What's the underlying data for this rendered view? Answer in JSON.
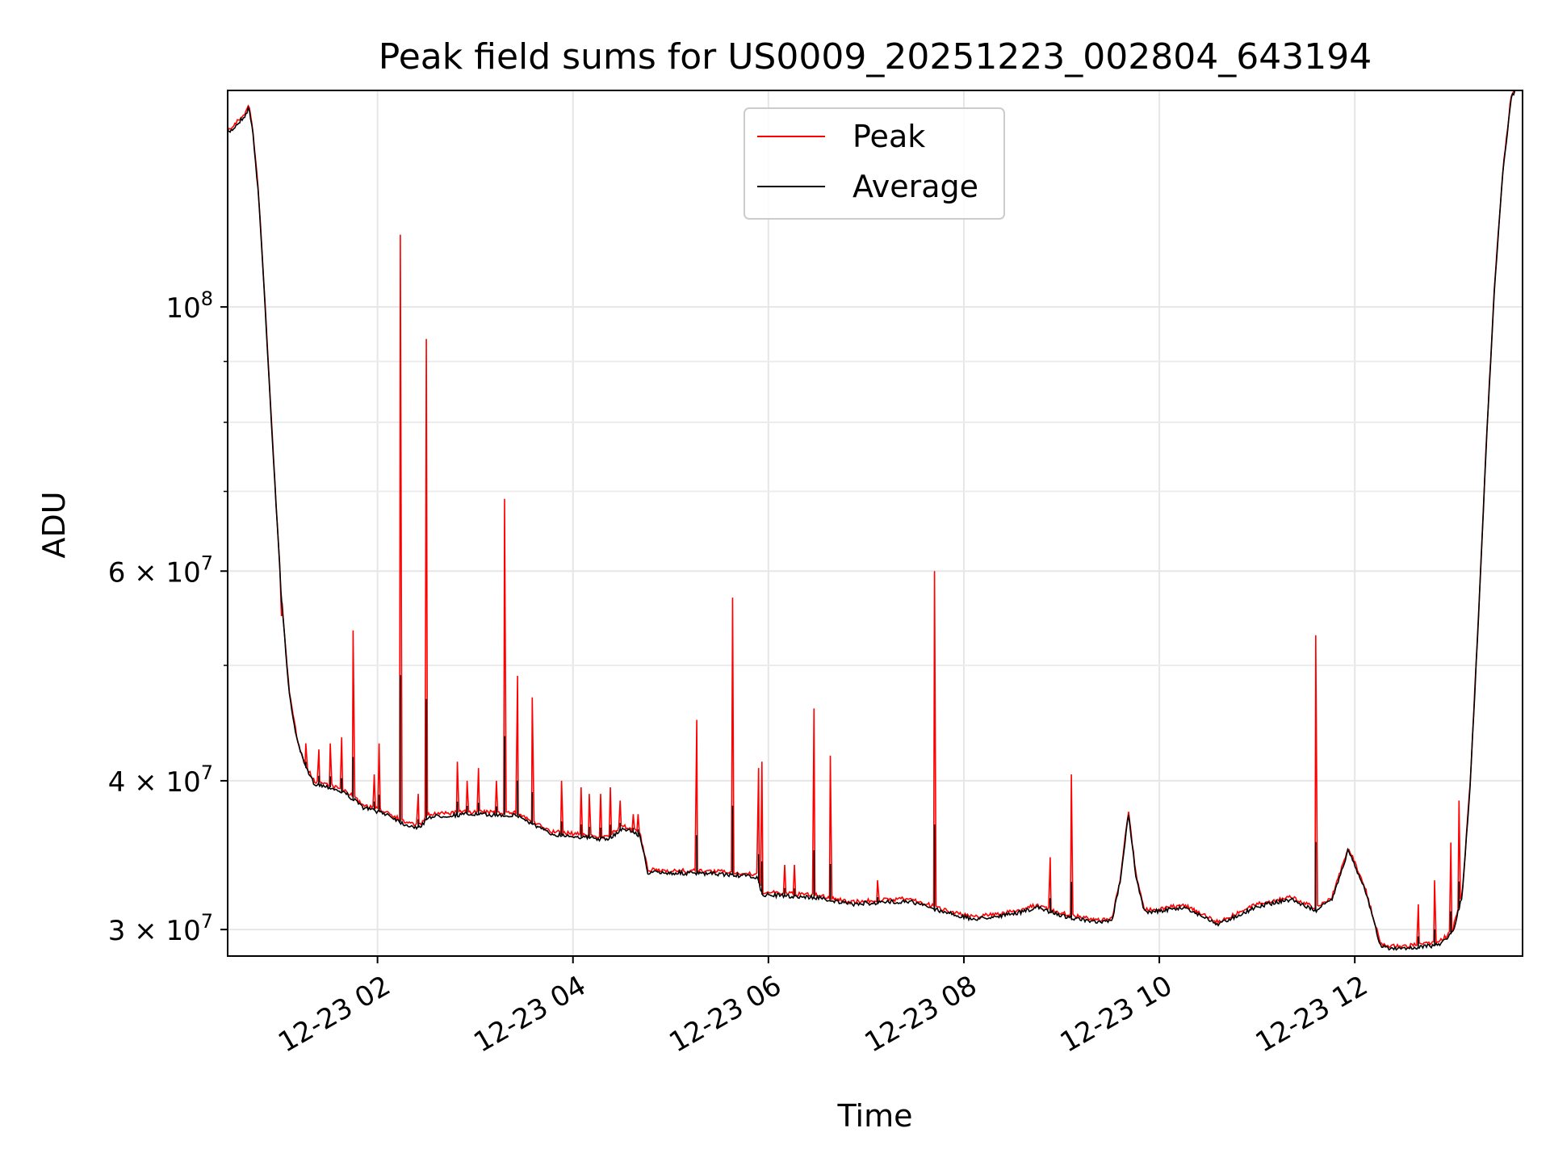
{
  "chart_data": {
    "type": "line",
    "title": "Peak field sums for US0009_20251223_002804_643194",
    "xlabel": "Time",
    "ylabel": "ADU",
    "y_scale": "log",
    "ylim": [
      28500000,
      152000000
    ],
    "xlim": [
      "2025-12-23 00:28",
      "2025-12-23 13:43"
    ],
    "grid": true,
    "legend_position": "upper center",
    "x_ticks": [
      {
        "value": "2025-12-23 02:00",
        "label": "12-23 02"
      },
      {
        "value": "2025-12-23 04:00",
        "label": "12-23 04"
      },
      {
        "value": "2025-12-23 06:00",
        "label": "12-23 06"
      },
      {
        "value": "2025-12-23 08:00",
        "label": "12-23 08"
      },
      {
        "value": "2025-12-23 10:00",
        "label": "12-23 10"
      },
      {
        "value": "2025-12-23 12:00",
        "label": "12-23 12"
      }
    ],
    "y_major_ticks": [
      {
        "value": 30000000,
        "base": "3 × 10",
        "exp": "7"
      },
      {
        "value": 40000000,
        "base": "4 × 10",
        "exp": "7"
      },
      {
        "value": 60000000,
        "base": "6 × 10",
        "exp": "7"
      },
      {
        "value": 100000000,
        "base": "10",
        "exp": "8"
      }
    ],
    "y_minor_ticks": [
      50000000,
      70000000,
      80000000,
      90000000
    ],
    "series": [
      {
        "name": "Peak",
        "color": "#ff0000",
        "note_points": "average baseline plus spikes",
        "spikes": [
          [
            "2025-12-23 01:01",
            55000000
          ],
          [
            "2025-12-23 01:04",
            51000000
          ],
          [
            "2025-12-23 01:16",
            43000000
          ],
          [
            "2025-12-23 01:24",
            42500000
          ],
          [
            "2025-12-23 01:31",
            43000000
          ],
          [
            "2025-12-23 01:38",
            43500000
          ],
          [
            "2025-12-23 01:45",
            53500000
          ],
          [
            "2025-12-23 01:58",
            40500000
          ],
          [
            "2025-12-23 02:01",
            43000000
          ],
          [
            "2025-12-23 02:14",
            115000000
          ],
          [
            "2025-12-23 02:25",
            39000000
          ],
          [
            "2025-12-23 02:30",
            94000000
          ],
          [
            "2025-12-23 02:49",
            41500000
          ],
          [
            "2025-12-23 02:55",
            40000000
          ],
          [
            "2025-12-23 03:02",
            41000000
          ],
          [
            "2025-12-23 03:13",
            40000000
          ],
          [
            "2025-12-23 03:18",
            69000000
          ],
          [
            "2025-12-23 03:26",
            49000000
          ],
          [
            "2025-12-23 03:35",
            47000000
          ],
          [
            "2025-12-23 03:53",
            40000000
          ],
          [
            "2025-12-23 04:05",
            39500000
          ],
          [
            "2025-12-23 04:10",
            39000000
          ],
          [
            "2025-12-23 04:17",
            39000000
          ],
          [
            "2025-12-23 04:23",
            39500000
          ],
          [
            "2025-12-23 04:29",
            38500000
          ],
          [
            "2025-12-23 04:37",
            37500000
          ],
          [
            "2025-12-23 04:40",
            37500000
          ],
          [
            "2025-12-23 05:16",
            45000000
          ],
          [
            "2025-12-23 05:38",
            57000000
          ],
          [
            "2025-12-23 05:54",
            41000000
          ],
          [
            "2025-12-23 05:56",
            41500000
          ],
          [
            "2025-12-23 06:10",
            34000000
          ],
          [
            "2025-12-23 06:16",
            34000000
          ],
          [
            "2025-12-23 06:28",
            46000000
          ],
          [
            "2025-12-23 06:38",
            42000000
          ],
          [
            "2025-12-23 07:07",
            33000000
          ],
          [
            "2025-12-23 07:42",
            60000000
          ],
          [
            "2025-12-23 08:53",
            34500000
          ],
          [
            "2025-12-23 09:06",
            40500000
          ],
          [
            "2025-12-23 11:36",
            53000000
          ],
          [
            "2025-12-23 12:39",
            31500000
          ],
          [
            "2025-12-23 12:49",
            33000000
          ],
          [
            "2025-12-23 12:59",
            35500000
          ],
          [
            "2025-12-23 13:04",
            38500000
          ]
        ]
      },
      {
        "name": "Average",
        "color": "#000000",
        "points": [
          [
            "2025-12-23 00:28",
            140000000
          ],
          [
            "2025-12-23 00:31",
            141000000
          ],
          [
            "2025-12-23 00:35",
            143000000
          ],
          [
            "2025-12-23 00:39",
            145000000
          ],
          [
            "2025-12-23 00:41",
            147000000
          ],
          [
            "2025-12-23 00:43",
            142000000
          ],
          [
            "2025-12-23 00:47",
            124000000
          ],
          [
            "2025-12-23 00:51",
            100000000
          ],
          [
            "2025-12-23 00:56",
            75000000
          ],
          [
            "2025-12-23 01:01",
            57000000
          ],
          [
            "2025-12-23 01:06",
            47000000
          ],
          [
            "2025-12-23 01:11",
            43000000
          ],
          [
            "2025-12-23 01:16",
            41000000
          ],
          [
            "2025-12-23 01:21",
            39800000
          ],
          [
            "2025-12-23 01:31",
            39500000
          ],
          [
            "2025-12-23 01:41",
            39000000
          ],
          [
            "2025-12-23 01:51",
            38000000
          ],
          [
            "2025-12-23 02:06",
            37500000
          ],
          [
            "2025-12-23 02:16",
            36800000
          ],
          [
            "2025-12-23 02:26",
            36500000
          ],
          [
            "2025-12-23 02:31",
            37300000
          ],
          [
            "2025-12-23 02:56",
            37500000
          ],
          [
            "2025-12-23 03:26",
            37400000
          ],
          [
            "2025-12-23 03:46",
            36100000
          ],
          [
            "2025-12-23 04:21",
            35700000
          ],
          [
            "2025-12-23 04:31",
            36500000
          ],
          [
            "2025-12-23 04:41",
            36000000
          ],
          [
            "2025-12-23 04:46",
            33500000
          ],
          [
            "2025-12-23 05:31",
            33400000
          ],
          [
            "2025-12-23 05:53",
            33200000
          ],
          [
            "2025-12-23 05:56",
            32100000
          ],
          [
            "2025-12-23 06:31",
            31900000
          ],
          [
            "2025-12-23 06:50",
            31500000
          ],
          [
            "2025-12-23 07:26",
            31700000
          ],
          [
            "2025-12-23 07:46",
            31100000
          ],
          [
            "2025-12-23 08:05",
            30600000
          ],
          [
            "2025-12-23 08:30",
            30900000
          ],
          [
            "2025-12-23 08:45",
            31300000
          ],
          [
            "2025-12-23 09:01",
            30800000
          ],
          [
            "2025-12-23 09:21",
            30400000
          ],
          [
            "2025-12-23 09:31",
            30500000
          ],
          [
            "2025-12-23 09:36",
            33000000
          ],
          [
            "2025-12-23 09:41",
            37500000
          ],
          [
            "2025-12-23 09:46",
            33000000
          ],
          [
            "2025-12-23 09:51",
            31000000
          ],
          [
            "2025-12-23 10:16",
            31300000
          ],
          [
            "2025-12-23 10:36",
            30300000
          ],
          [
            "2025-12-23 11:01",
            31400000
          ],
          [
            "2025-12-23 11:21",
            31800000
          ],
          [
            "2025-12-23 11:36",
            31100000
          ],
          [
            "2025-12-23 11:46",
            31800000
          ],
          [
            "2025-12-23 11:56",
            35000000
          ],
          [
            "2025-12-23 12:06",
            32500000
          ],
          [
            "2025-12-23 12:16",
            29000000
          ],
          [
            "2025-12-23 12:26",
            28900000
          ],
          [
            "2025-12-23 12:51",
            29100000
          ],
          [
            "2025-12-23 13:00",
            29800000
          ],
          [
            "2025-12-23 13:06",
            32000000
          ],
          [
            "2025-12-23 13:11",
            40000000
          ],
          [
            "2025-12-23 13:16",
            55000000
          ],
          [
            "2025-12-23 13:21",
            78000000
          ],
          [
            "2025-12-23 13:26",
            105000000
          ],
          [
            "2025-12-23 13:31",
            130000000
          ],
          [
            "2025-12-23 13:36",
            150000000
          ],
          [
            "2025-12-23 13:43",
            155000000
          ]
        ]
      }
    ]
  }
}
